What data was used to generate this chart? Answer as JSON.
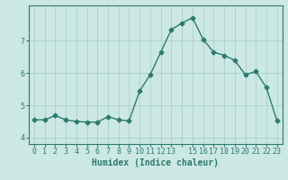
{
  "xlabel": "Humidex (Indice chaleur)",
  "x": [
    0,
    1,
    2,
    3,
    4,
    5,
    6,
    7,
    8,
    9,
    10,
    11,
    12,
    13,
    14,
    15,
    16,
    17,
    18,
    19,
    20,
    21,
    22,
    23
  ],
  "y": [
    4.55,
    4.55,
    4.68,
    4.55,
    4.5,
    4.48,
    4.48,
    4.65,
    4.55,
    4.52,
    5.45,
    5.95,
    6.65,
    7.35,
    7.55,
    7.72,
    7.05,
    6.65,
    6.55,
    6.4,
    5.95,
    6.05,
    5.55,
    4.52
  ],
  "line_color": "#2d7a6e",
  "bg_color": "#cce8e4",
  "grid_color": "#aacfcb",
  "tick_color": "#2d7a6e",
  "axis_color": "#2d7a6e",
  "ylim": [
    3.8,
    8.1
  ],
  "yticks": [
    4,
    5,
    6,
    7
  ],
  "xlim": [
    -0.5,
    23.5
  ],
  "xticks": [
    0,
    1,
    2,
    3,
    4,
    5,
    6,
    7,
    8,
    9,
    10,
    11,
    12,
    13,
    14,
    15,
    16,
    17,
    18,
    19,
    20,
    21,
    22,
    23
  ],
  "xtick_labels": [
    "0",
    "1",
    "2",
    "3",
    "4",
    "5",
    "6",
    "7",
    "8",
    "9",
    "10",
    "11",
    "12",
    "13",
    "",
    "15",
    "16",
    "17",
    "18",
    "19",
    "20",
    "21",
    "22",
    "23"
  ],
  "marker_size": 2.5,
  "line_width": 1.0,
  "font_size_label": 7,
  "font_size_tick": 6
}
